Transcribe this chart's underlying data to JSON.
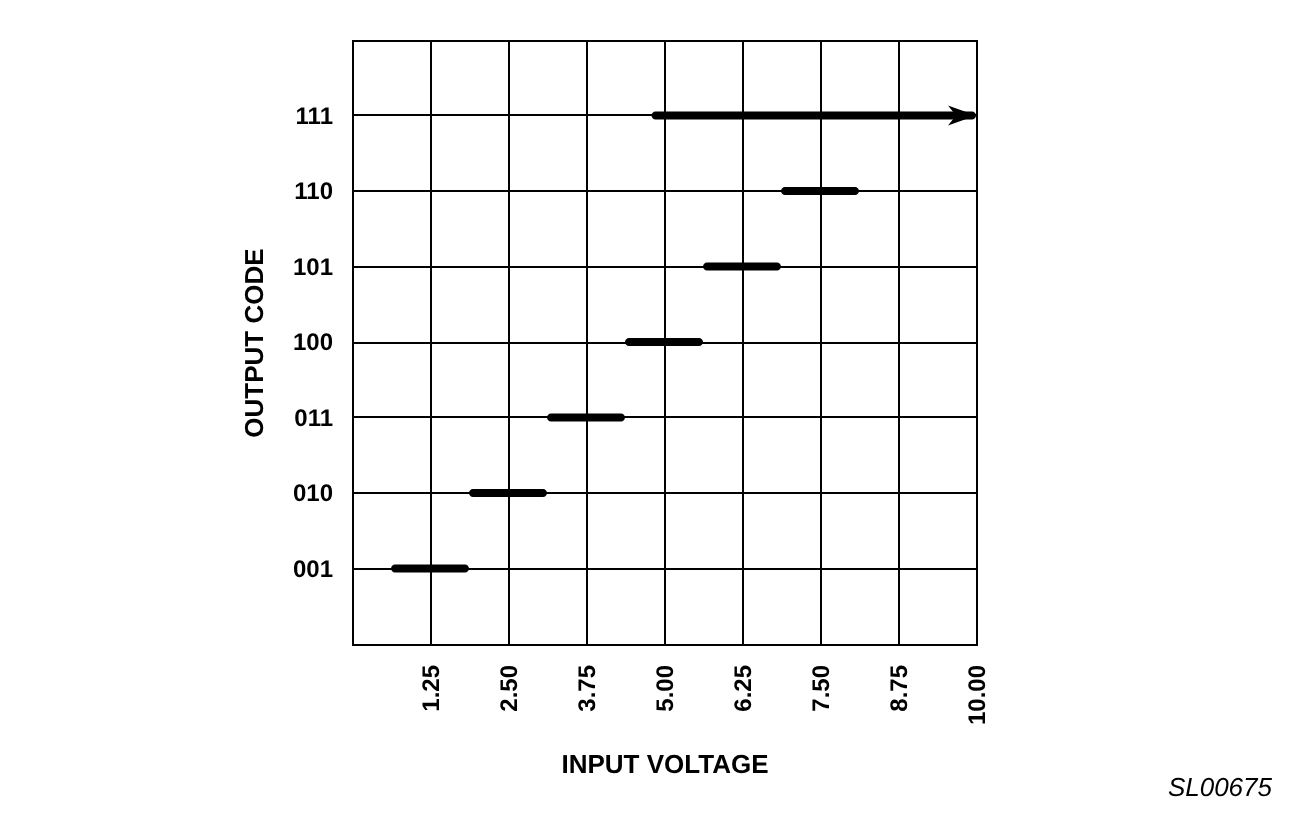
{
  "chart_data": {
    "type": "bar",
    "orientation": "horizontal",
    "xlabel": "INPUT VOLTAGE",
    "ylabel": "OUTPUT CODE",
    "categories": [
      "111",
      "110",
      "101",
      "100",
      "011",
      "010",
      "001"
    ],
    "base": [
      4.8,
      6.875,
      5.625,
      4.375,
      3.125,
      1.875,
      0.625
    ],
    "values": [
      5.2,
      1.25,
      1.25,
      1.25,
      1.25,
      1.25,
      1.25
    ],
    "color": "#000000",
    "xlim": [
      0,
      10
    ],
    "xticks": [
      {
        "value": 1.25,
        "label": "1.25"
      },
      {
        "value": 2.5,
        "label": "2.50"
      },
      {
        "value": 3.75,
        "label": "3.75"
      },
      {
        "value": 5,
        "label": "5.00"
      },
      {
        "value": 6.25,
        "label": "6.25"
      },
      {
        "value": 7.5,
        "label": "7.50"
      },
      {
        "value": 8.75,
        "label": "8.75"
      },
      {
        "value": 10,
        "label": "10.00"
      }
    ],
    "grid": true,
    "annotations": [
      "SL00675"
    ]
  }
}
